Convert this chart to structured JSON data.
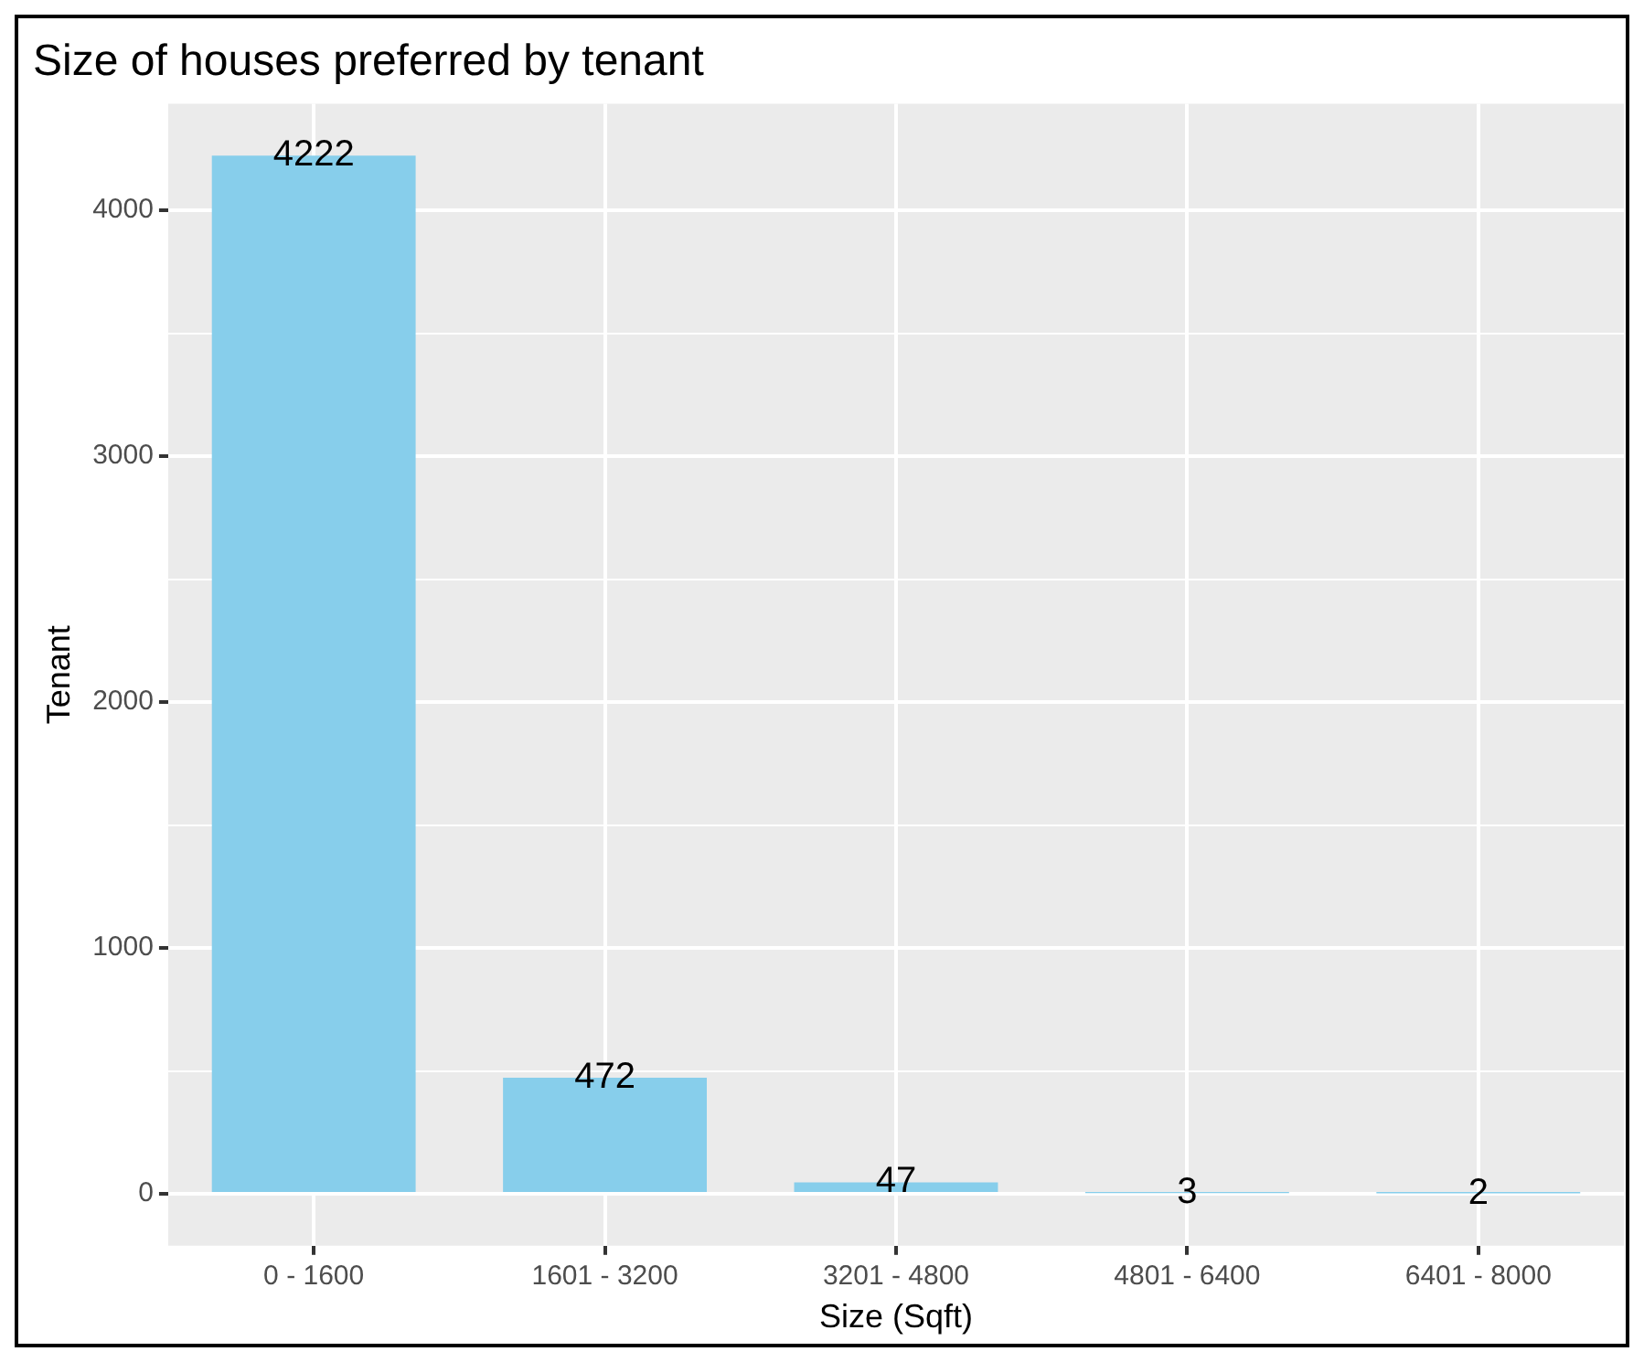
{
  "chart_data": {
    "type": "bar",
    "title": "Size of houses preferred by tenant",
    "xlabel": "Size (Sqft)",
    "ylabel": "Tenant",
    "categories": [
      "0 - 1600",
      "1601 - 3200",
      "3201 - 4800",
      "4801 - 6400",
      "6401 - 8000"
    ],
    "values": [
      4222,
      472,
      47,
      3,
      2
    ],
    "color": "#87ceeb",
    "ylim": [
      -211,
      4433
    ],
    "yticks": [
      0,
      {
        "value": 500,
        "label": null
      },
      1000,
      {
        "value": 1500,
        "label": null
      },
      2000,
      {
        "value": 2500,
        "label": null
      },
      3000,
      {
        "value": 3500,
        "label": null
      },
      4000
    ],
    "grid": true,
    "data_labels": true
  }
}
